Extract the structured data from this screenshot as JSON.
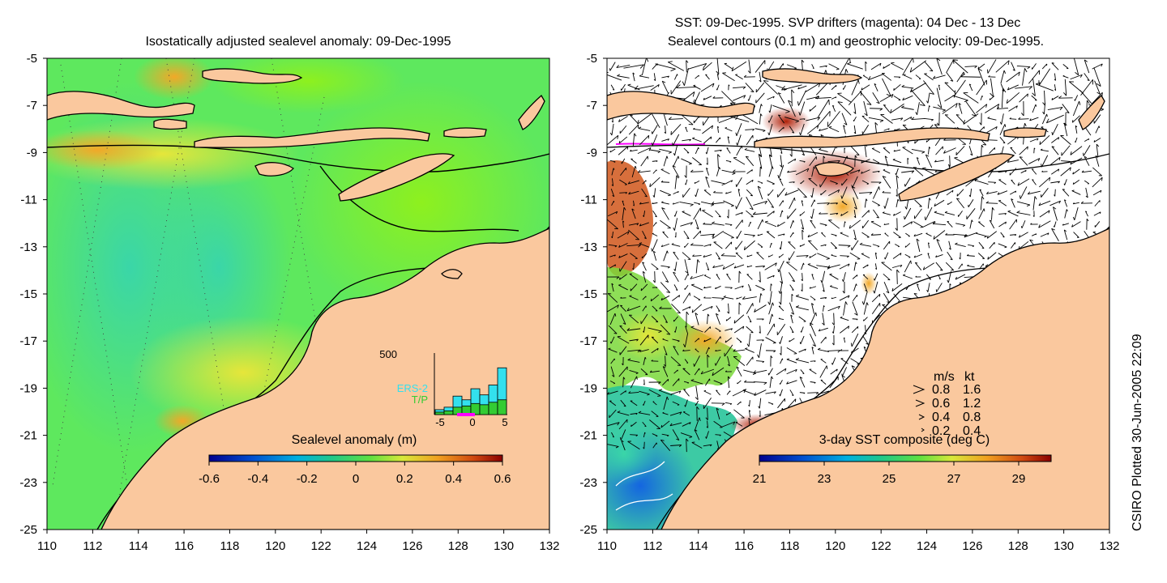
{
  "left_panel": {
    "title": "Isostatically adjusted sealevel anomaly: 09-Dec-1995",
    "colorbar": {
      "label": "Sealevel anomaly (m)",
      "ticks": [
        "-0.6",
        "-0.4",
        "-0.2",
        "0",
        "0.2",
        "0.4",
        "0.6"
      ],
      "range": [
        -0.6,
        0.6
      ]
    },
    "histogram": {
      "ymax_label": "500",
      "x_ticks": [
        "-5",
        "0",
        "5"
      ],
      "legend": [
        "ERS-2",
        "T/P"
      ],
      "legend_colors": [
        "#33e0ee",
        "#33cc33"
      ],
      "ers2_counts": [
        40,
        60,
        150,
        120,
        210,
        160,
        240,
        380
      ],
      "tp_counts": [
        20,
        30,
        60,
        70,
        90,
        80,
        100,
        120
      ],
      "ymax": 500
    }
  },
  "right_panel": {
    "title_line1": "SST: 09-Dec-1995. SVP drifters (magenta): 04 Dec - 13 Dec",
    "title_line2": "Sealevel contours (0.1 m) and geostrophic velocity: 09-Dec-1995.",
    "colorbar": {
      "label": "3-day SST composite (deg C)",
      "ticks": [
        "21",
        "23",
        "25",
        "27",
        "29"
      ],
      "range": [
        21,
        30
      ]
    },
    "speed_legend": {
      "header_ms": "m/s",
      "header_kt": "kt",
      "rows": [
        {
          "ms": "0.8",
          "kt": "1.6"
        },
        {
          "ms": "0.6",
          "kt": "1.2"
        },
        {
          "ms": "0.4",
          "kt": "0.8"
        },
        {
          "ms": "0.2",
          "kt": "0.4"
        }
      ]
    }
  },
  "axes": {
    "lon_ticks": [
      "110",
      "112",
      "114",
      "116",
      "118",
      "120",
      "122",
      "124",
      "126",
      "128",
      "130",
      "132"
    ],
    "lat_ticks": [
      "-5",
      "-7",
      "-9",
      "-11",
      "-13",
      "-15",
      "-17",
      "-19",
      "-21",
      "-23",
      "-25"
    ],
    "lon_range": [
      110,
      132
    ],
    "lat_range": [
      -25,
      -5
    ]
  },
  "credit": "CSIRO Plotted 30-Jun-2005 22:09",
  "colors": {
    "land": "#fac89e",
    "sla_ocean": "#5ee85e",
    "drifters": "#ff00ff"
  }
}
